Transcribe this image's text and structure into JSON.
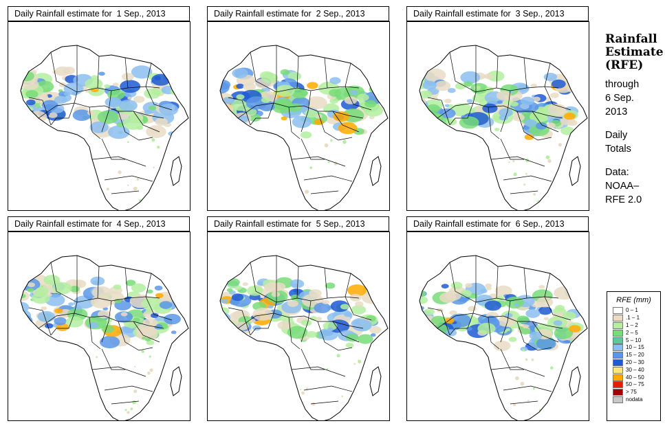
{
  "panels": [
    {
      "title": "Daily Rainfall estimate for  1 Sep., 2013",
      "day": 1
    },
    {
      "title": "Daily Rainfall estimate for  2 Sep., 2013",
      "day": 2
    },
    {
      "title": "Daily Rainfall estimate for  3 Sep., 2013",
      "day": 3
    },
    {
      "title": "Daily Rainfall estimate for  4 Sep., 2013",
      "day": 4
    },
    {
      "title": "Daily Rainfall estimate for  5 Sep., 2013",
      "day": 5
    },
    {
      "title": "Daily Rainfall estimate for  6 Sep., 2013",
      "day": 6
    }
  ],
  "side": {
    "title_line1": "Rainfall",
    "title_line2": "Estimate",
    "title_line3": "(RFE)",
    "through_line1": "through",
    "through_line2": "6 Sep.",
    "through_line3": "2013",
    "totals_line1": "Daily",
    "totals_line2": "Totals",
    "data_line1": "Data:",
    "data_line2": "NOAA–",
    "data_line3": "RFE 2.0"
  },
  "legend": {
    "title": "RFE (mm)",
    "items": [
      {
        "label": "0 – 1",
        "color": "#ffffff"
      },
      {
        "label": ".1 – 1",
        "color": "#e8dcc4"
      },
      {
        "label": "1 – 2",
        "color": "#b4eea0"
      },
      {
        "label": "2 – 5",
        "color": "#78dc78"
      },
      {
        "label": "5 – 10",
        "color": "#5ac8a0"
      },
      {
        "label": "10 – 15",
        "color": "#8cbef0"
      },
      {
        "label": "15 – 20",
        "color": "#5a96e6"
      },
      {
        "label": "20 – 30",
        "color": "#1e5ad2"
      },
      {
        "label": "30 – 40",
        "color": "#ffe678"
      },
      {
        "label": "40 – 50",
        "color": "#ffaa00"
      },
      {
        "label": "50 – 75",
        "color": "#e61e00"
      },
      {
        "label": "> 75",
        "color": "#a00000"
      },
      {
        "label": "nodata",
        "color": "#c8c8c8"
      }
    ]
  }
}
